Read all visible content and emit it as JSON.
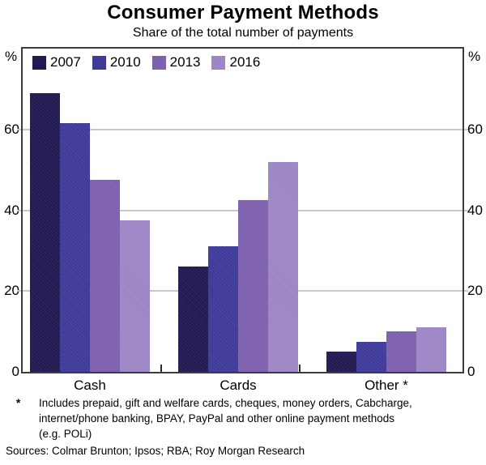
{
  "title": "Consumer Payment Methods",
  "subtitle": "Share of the total number of payments",
  "axis": {
    "unit_label": "%",
    "tick_values": [
      0,
      20,
      40,
      60
    ],
    "max": 80
  },
  "chart_data": {
    "type": "bar",
    "title": "Consumer Payment Methods",
    "subtitle": "Share of the total number of payments",
    "categories": [
      "Cash",
      "Cards",
      "Other *"
    ],
    "series": [
      {
        "name": "2007",
        "color": "#211a51",
        "values": [
          69,
          26,
          5
        ]
      },
      {
        "name": "2010",
        "color": "#3f3a99",
        "values": [
          61.5,
          31,
          7.5
        ]
      },
      {
        "name": "2013",
        "color": "#7e60ae",
        "values": [
          47.5,
          42.5,
          10
        ]
      },
      {
        "name": "2016",
        "color": "#9c86c5",
        "values": [
          37.5,
          52,
          11
        ]
      }
    ],
    "ylabel": "%",
    "ylim": [
      0,
      80
    ],
    "yticks": [
      0,
      20,
      40,
      60
    ],
    "grid": true,
    "legend_position": "top-left-inside",
    "gridline_color": "#c9c9c9",
    "frame_color": "#3c3c3c"
  },
  "footnote": {
    "marker": "*",
    "text": "Includes prepaid, gift and welfare cards, cheques, money orders, Cabcharge, internet/phone banking, BPAY, PayPal and other online payment methods (e.g. POLi)"
  },
  "sources": "Sources: Colmar Brunton; Ipsos; RBA; Roy Morgan Research"
}
